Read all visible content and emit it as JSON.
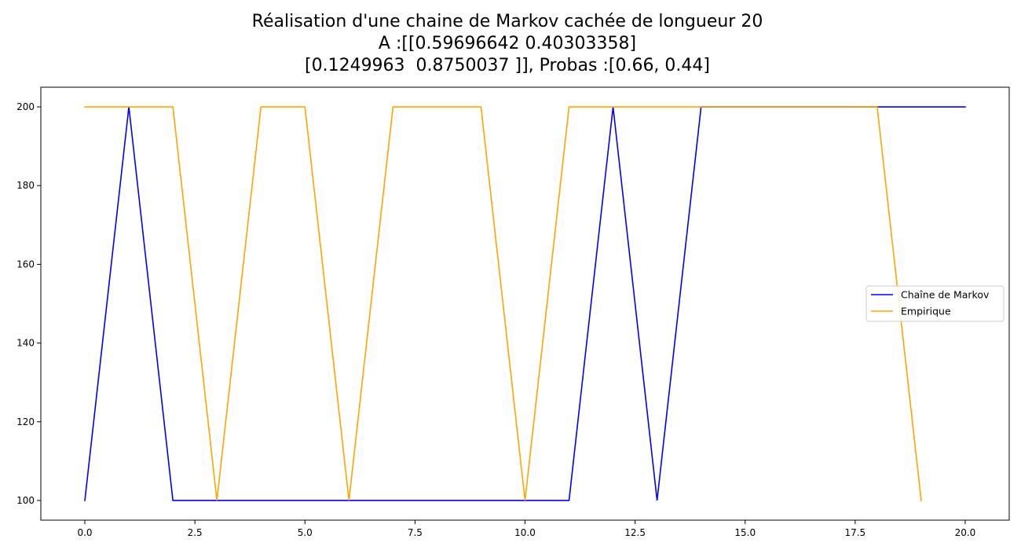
{
  "chart_data": {
    "type": "line",
    "title_lines": [
      "Réalisation d'une chaine de Markov cachée de longueur 20",
      "A :[[0.59696642 0.40303358]",
      "[0.1249963  0.8750037 ]], Probas :[0.66, 0.44]"
    ],
    "xlabel": "",
    "ylabel": "",
    "xlim": [
      -1.0,
      21.0
    ],
    "ylim": [
      95,
      205
    ],
    "x_ticks": [
      0.0,
      2.5,
      5.0,
      7.5,
      10.0,
      12.5,
      15.0,
      17.5,
      20.0
    ],
    "x_tick_labels": [
      "0.0",
      "2.5",
      "5.0",
      "7.5",
      "10.0",
      "12.5",
      "15.0",
      "17.5",
      "20.0"
    ],
    "y_ticks": [
      100,
      120,
      140,
      160,
      180,
      200
    ],
    "y_tick_labels": [
      "100",
      "120",
      "140",
      "160",
      "180",
      "200"
    ],
    "grid": false,
    "legend_position": "center-right",
    "series": [
      {
        "name": "Chaîne de Markov",
        "color": "#0000ff",
        "x": [
          0,
          1,
          2,
          3,
          4,
          5,
          6,
          7,
          8,
          9,
          10,
          11,
          12,
          13,
          14,
          15,
          16,
          17,
          18,
          19,
          20
        ],
        "y": [
          100,
          200,
          100,
          100,
          100,
          100,
          100,
          100,
          100,
          100,
          100,
          100,
          200,
          100,
          200,
          200,
          200,
          200,
          200,
          200,
          200
        ]
      },
      {
        "name": "Empirique",
        "color": "#ffa500",
        "x": [
          0,
          1,
          2,
          3,
          4,
          5,
          6,
          7,
          8,
          9,
          10,
          11,
          12,
          13,
          14,
          15,
          16,
          17,
          18,
          19
        ],
        "y": [
          200,
          200,
          200,
          100,
          200,
          200,
          100,
          200,
          200,
          200,
          100,
          200,
          200,
          200,
          200,
          200,
          200,
          200,
          200,
          100
        ]
      }
    ]
  }
}
